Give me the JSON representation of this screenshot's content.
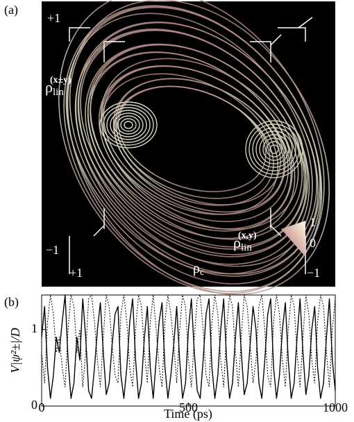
{
  "panel_a": {
    "label": "(a)",
    "top_left": "+1",
    "left_axis": {
      "symbol": "ρ",
      "sub": "lin",
      "sup": "(x±y)"
    },
    "bottom_left": "−1",
    "bottom_x_left": "+1",
    "bottom_axis": {
      "symbol": "ρ",
      "sub": "c"
    },
    "bottom_x_right": "−1",
    "colorbar": {
      "max": "1",
      "min": "0",
      "symbol": "ρ",
      "sub": "lin",
      "sup": "(x,y)"
    }
  },
  "chart_data": {
    "type": "line",
    "panel_label": "(b)",
    "x_label": "Time (ps)",
    "y_label": "V|ψ²±|/D",
    "xlim": [
      0,
      1000
    ],
    "xticks": [
      0,
      500,
      1000
    ],
    "ylim": [
      0,
      1.45
    ],
    "yticks": [
      0,
      1
    ],
    "x": [
      0,
      10,
      20,
      30,
      40,
      50,
      60,
      70,
      80,
      90,
      100,
      110,
      120,
      130,
      140,
      150,
      160,
      170,
      180,
      190,
      200,
      210,
      220,
      230,
      240,
      250,
      260,
      270,
      280,
      290,
      300,
      310,
      320,
      330,
      340,
      350,
      360,
      370,
      380,
      390,
      400,
      410,
      420,
      430,
      440,
      450,
      460,
      470,
      480,
      490,
      500,
      510,
      520,
      530,
      540,
      550,
      560,
      570,
      580,
      590,
      600,
      610,
      620,
      630,
      640,
      650,
      660,
      670,
      680,
      690,
      700,
      710,
      720,
      730,
      740,
      750,
      760,
      770,
      780,
      790,
      800,
      810,
      820,
      830,
      840,
      850,
      860,
      870,
      880,
      890,
      900,
      910,
      920,
      930,
      940,
      950,
      960,
      970,
      980,
      990,
      1000
    ],
    "series": [
      {
        "color": "#000000",
        "style": "solid",
        "values": [
          0.9,
          1.3,
          0.5,
          0.1,
          0.4,
          0.9,
          0.7,
          1.1,
          1.45,
          0.6,
          0.1,
          0.3,
          0.9,
          0.6,
          1.4,
          0.9,
          0.2,
          0.1,
          0.5,
          1.0,
          1.35,
          0.7,
          0.15,
          0.3,
          0.8,
          1.2,
          1.3,
          0.4,
          0.1,
          0.5,
          1.1,
          1.4,
          0.6,
          0.1,
          0.3,
          0.9,
          1.3,
          0.5,
          0.1,
          0.6,
          1.1,
          1.35,
          0.5,
          0.1,
          0.4,
          0.8,
          1.3,
          0.6,
          0.1,
          0.3,
          1.0,
          1.4,
          0.7,
          0.2,
          0.1,
          0.6,
          1.2,
          1.4,
          0.5,
          0.1,
          0.4,
          1.0,
          1.4,
          0.6,
          0.1,
          0.3,
          0.9,
          1.35,
          0.7,
          0.15,
          0.3,
          0.8,
          1.3,
          1.0,
          0.3,
          0.1,
          0.6,
          1.2,
          1.4,
          0.5,
          0.1,
          0.4,
          1.0,
          1.35,
          0.6,
          0.1,
          0.3,
          0.9,
          1.4,
          0.7,
          0.15,
          0.4,
          1.0,
          1.3,
          0.5,
          0.1,
          0.3,
          0.9,
          1.4,
          0.6,
          0.2
        ]
      },
      {
        "color": "#000000",
        "style": "dotted",
        "values": [
          0.7,
          0.3,
          1.1,
          1.45,
          1.2,
          0.7,
          0.9,
          0.5,
          0.25,
          1.0,
          1.45,
          1.3,
          0.7,
          1.0,
          0.25,
          0.7,
          1.4,
          1.45,
          1.1,
          0.6,
          0.25,
          0.9,
          1.45,
          1.3,
          0.8,
          0.4,
          0.3,
          1.2,
          1.45,
          1.1,
          0.5,
          0.25,
          1.0,
          1.45,
          1.3,
          0.7,
          0.3,
          1.1,
          1.45,
          1.0,
          0.5,
          0.25,
          1.1,
          1.45,
          1.2,
          0.8,
          0.3,
          1.0,
          1.45,
          1.3,
          0.6,
          0.25,
          0.9,
          1.4,
          1.45,
          1.0,
          0.4,
          0.25,
          1.1,
          1.45,
          1.2,
          0.6,
          0.25,
          1.0,
          1.45,
          1.3,
          0.7,
          0.25,
          0.9,
          1.45,
          1.3,
          0.8,
          0.3,
          0.6,
          1.3,
          1.45,
          1.0,
          0.4,
          0.25,
          1.1,
          1.45,
          1.2,
          0.6,
          0.25,
          1.0,
          1.45,
          1.3,
          0.7,
          0.25,
          0.9,
          1.45,
          1.2,
          0.6,
          0.3,
          1.1,
          1.45,
          1.3,
          0.7,
          0.25,
          1.0,
          1.4
        ]
      }
    ]
  }
}
